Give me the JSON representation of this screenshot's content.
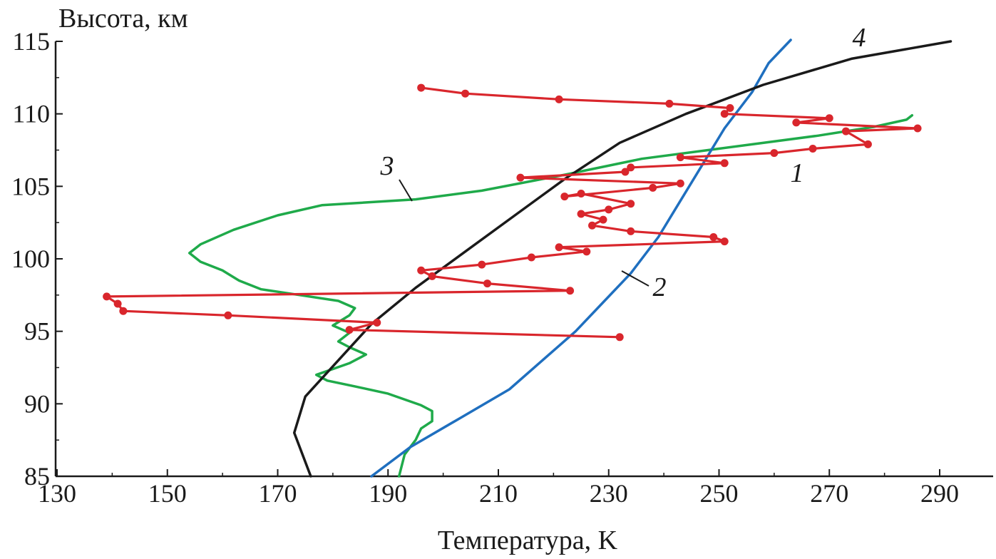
{
  "chart_data": {
    "type": "line",
    "title": "",
    "xlabel": "Температура, K",
    "ylabel": "Высота, км",
    "xlim": [
      130,
      300
    ],
    "ylim": [
      85,
      115
    ],
    "xticks": [
      130,
      150,
      170,
      190,
      210,
      230,
      250,
      270,
      290
    ],
    "yticks": [
      85,
      90,
      95,
      100,
      105,
      110,
      115
    ],
    "grid": false,
    "series": [
      {
        "name": "1",
        "label_text": "1",
        "color": "#d9262c",
        "markers": true,
        "points": [
          [
            232,
            94.6
          ],
          [
            183,
            95.1
          ],
          [
            188,
            95.6
          ],
          [
            161,
            96.1
          ],
          [
            142,
            96.4
          ],
          [
            141,
            96.9
          ],
          [
            139,
            97.4
          ],
          [
            223,
            97.8
          ],
          [
            208,
            98.3
          ],
          [
            198,
            98.8
          ],
          [
            196,
            99.2
          ],
          [
            207,
            99.6
          ],
          [
            216,
            100.1
          ],
          [
            226,
            100.5
          ],
          [
            221,
            100.8
          ],
          [
            251,
            101.2
          ],
          [
            249,
            101.5
          ],
          [
            234,
            101.9
          ],
          [
            227,
            102.3
          ],
          [
            229,
            102.7
          ],
          [
            225,
            103.1
          ],
          [
            230,
            103.4
          ],
          [
            234,
            103.8
          ],
          [
            225,
            104.5
          ],
          [
            222,
            104.3
          ],
          [
            238,
            104.9
          ],
          [
            243,
            105.2
          ],
          [
            214,
            105.6
          ],
          [
            233,
            106.0
          ],
          [
            234,
            106.3
          ],
          [
            251,
            106.6
          ],
          [
            243,
            107.0
          ],
          [
            260,
            107.3
          ],
          [
            267,
            107.6
          ],
          [
            277,
            107.9
          ],
          [
            273,
            108.8
          ],
          [
            286,
            109.0
          ],
          [
            264,
            109.4
          ],
          [
            270,
            109.7
          ],
          [
            251,
            110.0
          ],
          [
            252,
            110.4
          ],
          [
            241,
            110.7
          ],
          [
            221,
            111.0
          ],
          [
            204,
            111.4
          ],
          [
            196,
            111.8
          ]
        ]
      },
      {
        "name": "2",
        "label_text": "2",
        "color": "#1f6fbf",
        "markers": false,
        "points": [
          [
            187,
            85.0
          ],
          [
            194,
            87.0
          ],
          [
            203,
            89.0
          ],
          [
            212,
            91.0
          ],
          [
            218,
            93.0
          ],
          [
            224,
            95.0
          ],
          [
            229,
            97.0
          ],
          [
            234,
            99.0
          ],
          [
            239,
            101.5
          ],
          [
            243,
            104.0
          ],
          [
            247,
            106.5
          ],
          [
            251,
            109.0
          ],
          [
            256,
            111.5
          ],
          [
            259,
            113.5
          ],
          [
            263,
            115.1
          ]
        ]
      },
      {
        "name": "3",
        "label_text": "3",
        "color": "#1faa4a",
        "markers": false,
        "points": [
          [
            192,
            85.0
          ],
          [
            193,
            86.5
          ],
          [
            195,
            87.5
          ],
          [
            196,
            88.3
          ],
          [
            198,
            88.8
          ],
          [
            198,
            89.5
          ],
          [
            196,
            89.9
          ],
          [
            190,
            90.7
          ],
          [
            184,
            91.2
          ],
          [
            179,
            91.6
          ],
          [
            177,
            92.0
          ],
          [
            183,
            92.8
          ],
          [
            186,
            93.4
          ],
          [
            183,
            93.9
          ],
          [
            181,
            94.3
          ],
          [
            183,
            94.9
          ],
          [
            180,
            95.4
          ],
          [
            183,
            96.1
          ],
          [
            184,
            96.6
          ],
          [
            181,
            97.1
          ],
          [
            174,
            97.5
          ],
          [
            167,
            97.9
          ],
          [
            163,
            98.5
          ],
          [
            160,
            99.2
          ],
          [
            156,
            99.8
          ],
          [
            154,
            100.4
          ],
          [
            156,
            101.0
          ],
          [
            162,
            102.0
          ],
          [
            170,
            103.0
          ],
          [
            178,
            103.7
          ],
          [
            195,
            104.1
          ],
          [
            207,
            104.7
          ],
          [
            222,
            105.8
          ],
          [
            236,
            106.9
          ],
          [
            250,
            107.6
          ],
          [
            268,
            108.5
          ],
          [
            278,
            109.1
          ],
          [
            284,
            109.6
          ],
          [
            285,
            109.9
          ]
        ]
      },
      {
        "name": "4",
        "label_text": "4",
        "color": "#1a1a1a",
        "markers": false,
        "points": [
          [
            176,
            85.0
          ],
          [
            173,
            88.0
          ],
          [
            175,
            90.5
          ],
          [
            181,
            93.0
          ],
          [
            187,
            95.5
          ],
          [
            195,
            98.0
          ],
          [
            204,
            100.5
          ],
          [
            213,
            103.0
          ],
          [
            222,
            105.5
          ],
          [
            232,
            108.0
          ],
          [
            244,
            110.0
          ],
          [
            258,
            112.0
          ],
          [
            274,
            113.8
          ],
          [
            292,
            115.0
          ]
        ]
      }
    ]
  }
}
